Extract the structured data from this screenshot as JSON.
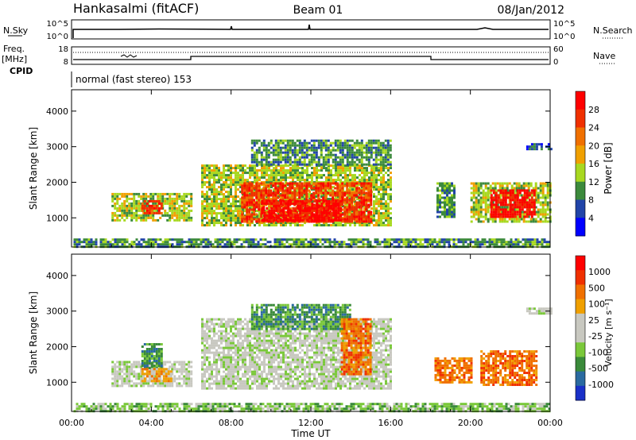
{
  "header": {
    "station": "Hankasalmi (fitACF)",
    "beam": "Beam 01",
    "date": "08/Jan/2012"
  },
  "top_panels": {
    "nsky_label": "N.Sky",
    "nsky_ticks": [
      "10^5",
      "10^0"
    ],
    "nsearch_label": "N.Search",
    "nsearch_ticks": [
      "10^5",
      "10^0"
    ],
    "freq_label_1": "Freq.",
    "freq_label_2": "[MHz]",
    "freq_ticks": [
      "18",
      "8"
    ],
    "nave_label": "Nave",
    "nave_ticks": [
      "60",
      "0"
    ],
    "cpid_label": "CPID",
    "cpid_text": "normal (fast stereo) 153"
  },
  "colors": {
    "power_scale": [
      "#0000ff",
      "#2144a8",
      "#3c8a3c",
      "#a8d820",
      "#f0a000",
      "#f07000",
      "#f03000",
      "#ff0000"
    ],
    "velocity_scale": [
      "#1a30c8",
      "#2a6aa0",
      "#3a8a3a",
      "#7ac83a",
      "#c8c8c0",
      "#c8c8c0",
      "#f0a000",
      "#f07000",
      "#f03000",
      "#ff0000"
    ]
  },
  "chart_data": [
    {
      "type": "heatmap",
      "title": "Power",
      "xlabel": "Time UT",
      "ylabel": "Slant Range [km]",
      "xlim": [
        0,
        24
      ],
      "ylim": [
        180,
        4600
      ],
      "yticks": [
        "1000",
        "2000",
        "3000",
        "4000"
      ],
      "xticks": [
        "00:00",
        "04:00",
        "08:00",
        "12:00",
        "16:00",
        "20:00",
        "00:00"
      ],
      "colorbar_label": "Power [dB]",
      "colorbar_ticks": [
        "4",
        "8",
        "12",
        "16",
        "20",
        "24",
        "28"
      ],
      "regions": [
        {
          "t0": 0.1,
          "t1": 24.0,
          "r0": 200,
          "r1": 420,
          "level": 2
        },
        {
          "t0": 2.0,
          "t1": 6.0,
          "r0": 900,
          "r1": 1700,
          "level": 3
        },
        {
          "t0": 3.5,
          "t1": 4.5,
          "r0": 1100,
          "r1": 1500,
          "level": 6
        },
        {
          "t0": 6.5,
          "t1": 16.0,
          "r0": 800,
          "r1": 2500,
          "level": 3
        },
        {
          "t0": 8.5,
          "t1": 15.0,
          "r0": 900,
          "r1": 2000,
          "level": 6
        },
        {
          "t0": 9.5,
          "t1": 13.5,
          "r0": 900,
          "r1": 1500,
          "level": 7
        },
        {
          "t0": 9.0,
          "t1": 16.0,
          "r0": 2500,
          "r1": 3200,
          "level": 2
        },
        {
          "t0": 18.3,
          "t1": 19.2,
          "r0": 1000,
          "r1": 2000,
          "level": 2
        },
        {
          "t0": 20.0,
          "t1": 24.0,
          "r0": 900,
          "r1": 2000,
          "level": 3
        },
        {
          "t0": 21.0,
          "t1": 23.2,
          "r0": 1000,
          "r1": 1800,
          "level": 7
        },
        {
          "t0": 22.8,
          "t1": 24.0,
          "r0": 2900,
          "r1": 3100,
          "level": 1
        }
      ]
    },
    {
      "type": "heatmap",
      "title": "Velocity",
      "xlabel": "Time UT",
      "ylabel": "Slant Range [km]",
      "xlim": [
        0,
        24
      ],
      "ylim": [
        180,
        4600
      ],
      "yticks": [
        "1000",
        "2000",
        "3000",
        "4000"
      ],
      "xticks": [
        "00:00",
        "04:00",
        "08:00",
        "12:00",
        "16:00",
        "20:00",
        "00:00"
      ],
      "colorbar_label": "Velocity [m s⁻¹]",
      "colorbar_ticks": [
        "1000",
        "500",
        "100",
        "25",
        "-25",
        "-100",
        "-500",
        "-1000"
      ],
      "regions": [
        {
          "t0": 0.1,
          "t1": 24.0,
          "r0": 200,
          "r1": 420,
          "level": 3
        },
        {
          "t0": 2.0,
          "t1": 6.0,
          "r0": 900,
          "r1": 1600,
          "level": 4
        },
        {
          "t0": 3.5,
          "t1": 4.5,
          "r0": 1400,
          "r1": 2100,
          "level": 2
        },
        {
          "t0": 3.5,
          "t1": 5.0,
          "r0": 1000,
          "r1": 1400,
          "level": 6
        },
        {
          "t0": 6.5,
          "t1": 16.0,
          "r0": 800,
          "r1": 2800,
          "level": 4
        },
        {
          "t0": 9.0,
          "t1": 14.0,
          "r0": 2500,
          "r1": 3200,
          "level": 2
        },
        {
          "t0": 13.5,
          "t1": 15.0,
          "r0": 1200,
          "r1": 2800,
          "level": 7
        },
        {
          "t0": 18.2,
          "t1": 20.0,
          "r0": 1000,
          "r1": 1700,
          "level": 7
        },
        {
          "t0": 20.5,
          "t1": 23.3,
          "r0": 900,
          "r1": 1900,
          "level": 7
        },
        {
          "t0": 22.8,
          "t1": 24.0,
          "r0": 2900,
          "r1": 3100,
          "level": 4
        }
      ]
    }
  ]
}
